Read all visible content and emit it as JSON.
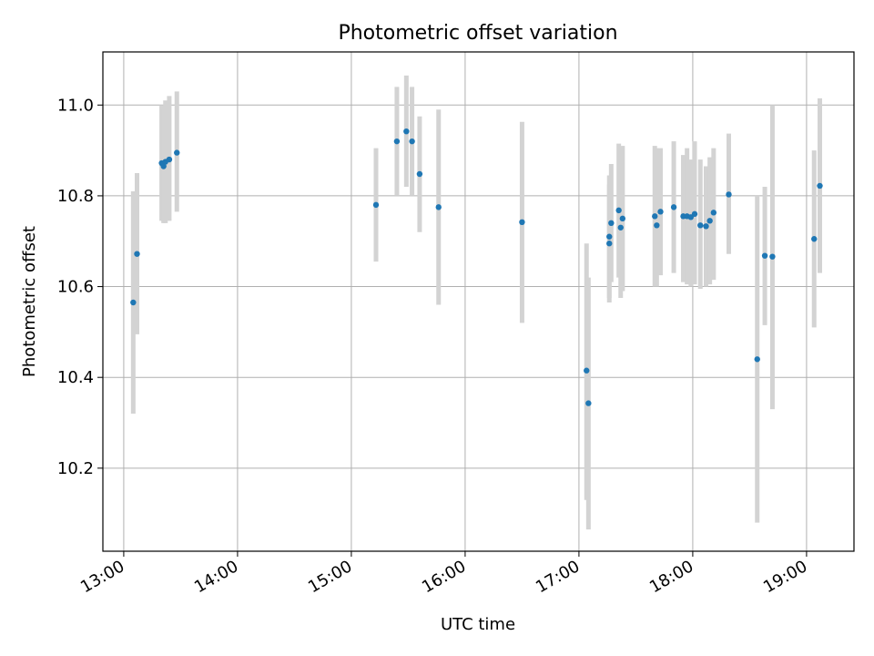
{
  "chart_data": {
    "type": "scatter",
    "title": "Photometric offset variation",
    "xlabel": "UTC time",
    "ylabel": "Photometric offset",
    "xlim": [
      "12:49",
      "19:25"
    ],
    "ylim": [
      10.017,
      11.117
    ],
    "x_ticks": [
      "13:00",
      "14:00",
      "15:00",
      "16:00",
      "17:00",
      "18:00",
      "19:00"
    ],
    "y_ticks": [
      "10.2",
      "10.4",
      "10.6",
      "10.8",
      "11.0"
    ],
    "grid": true,
    "point_color": "#1f77b4",
    "errorbar_color": "#d3d3d3",
    "points": [
      {
        "t": "13:05",
        "y": 10.565,
        "ylo": 10.32,
        "yhi": 10.81
      },
      {
        "t": "13:07",
        "y": 10.672,
        "ylo": 10.495,
        "yhi": 10.85
      },
      {
        "t": "13:20",
        "y": 10.872,
        "ylo": 10.745,
        "yhi": 11.0
      },
      {
        "t": "13:21",
        "y": 10.865,
        "ylo": 10.74,
        "yhi": 10.99
      },
      {
        "t": "13:22",
        "y": 10.875,
        "ylo": 10.74,
        "yhi": 11.01
      },
      {
        "t": "13:24",
        "y": 10.88,
        "ylo": 10.745,
        "yhi": 11.02
      },
      {
        "t": "13:28",
        "y": 10.895,
        "ylo": 10.765,
        "yhi": 11.03
      },
      {
        "t": "15:13",
        "y": 10.78,
        "ylo": 10.655,
        "yhi": 10.905
      },
      {
        "t": "15:24",
        "y": 10.92,
        "ylo": 10.8,
        "yhi": 11.04
      },
      {
        "t": "15:29",
        "y": 10.942,
        "ylo": 10.82,
        "yhi": 11.065
      },
      {
        "t": "15:32",
        "y": 10.92,
        "ylo": 10.8,
        "yhi": 11.04
      },
      {
        "t": "15:36",
        "y": 10.848,
        "ylo": 10.72,
        "yhi": 10.975
      },
      {
        "t": "15:46",
        "y": 10.775,
        "ylo": 10.56,
        "yhi": 10.99
      },
      {
        "t": "16:30",
        "y": 10.742,
        "ylo": 10.52,
        "yhi": 10.963
      },
      {
        "t": "17:04",
        "y": 10.415,
        "ylo": 10.13,
        "yhi": 10.695
      },
      {
        "t": "17:05",
        "y": 10.343,
        "ylo": 10.065,
        "yhi": 10.62
      },
      {
        "t": "17:16",
        "y": 10.695,
        "ylo": 10.565,
        "yhi": 10.825
      },
      {
        "t": "17:16",
        "y": 10.71,
        "ylo": 10.575,
        "yhi": 10.845
      },
      {
        "t": "17:17",
        "y": 10.74,
        "ylo": 10.61,
        "yhi": 10.87
      },
      {
        "t": "17:21",
        "y": 10.768,
        "ylo": 10.62,
        "yhi": 10.915
      },
      {
        "t": "17:22",
        "y": 10.73,
        "ylo": 10.575,
        "yhi": 10.905
      },
      {
        "t": "17:23",
        "y": 10.75,
        "ylo": 10.59,
        "yhi": 10.91
      },
      {
        "t": "17:40",
        "y": 10.755,
        "ylo": 10.6,
        "yhi": 10.91
      },
      {
        "t": "17:41",
        "y": 10.735,
        "ylo": 10.6,
        "yhi": 10.905
      },
      {
        "t": "17:43",
        "y": 10.765,
        "ylo": 10.625,
        "yhi": 10.905
      },
      {
        "t": "17:50",
        "y": 10.775,
        "ylo": 10.63,
        "yhi": 10.92
      },
      {
        "t": "17:55",
        "y": 10.755,
        "ylo": 10.61,
        "yhi": 10.89
      },
      {
        "t": "17:57",
        "y": 10.755,
        "ylo": 10.605,
        "yhi": 10.905
      },
      {
        "t": "17:59",
        "y": 10.753,
        "ylo": 10.6,
        "yhi": 10.88
      },
      {
        "t": "18:01",
        "y": 10.76,
        "ylo": 10.605,
        "yhi": 10.92
      },
      {
        "t": "18:04",
        "y": 10.735,
        "ylo": 10.595,
        "yhi": 10.88
      },
      {
        "t": "18:07",
        "y": 10.733,
        "ylo": 10.6,
        "yhi": 10.865
      },
      {
        "t": "18:09",
        "y": 10.745,
        "ylo": 10.605,
        "yhi": 10.885
      },
      {
        "t": "18:11",
        "y": 10.763,
        "ylo": 10.615,
        "yhi": 10.905
      },
      {
        "t": "18:19",
        "y": 10.803,
        "ylo": 10.672,
        "yhi": 10.937
      },
      {
        "t": "18:34",
        "y": 10.44,
        "ylo": 10.08,
        "yhi": 10.8
      },
      {
        "t": "18:38",
        "y": 10.668,
        "ylo": 10.515,
        "yhi": 10.82
      },
      {
        "t": "18:42",
        "y": 10.666,
        "ylo": 10.33,
        "yhi": 11.0
      },
      {
        "t": "19:04",
        "y": 10.705,
        "ylo": 10.51,
        "yhi": 10.9
      },
      {
        "t": "19:07",
        "y": 10.822,
        "ylo": 10.63,
        "yhi": 11.015
      }
    ]
  }
}
